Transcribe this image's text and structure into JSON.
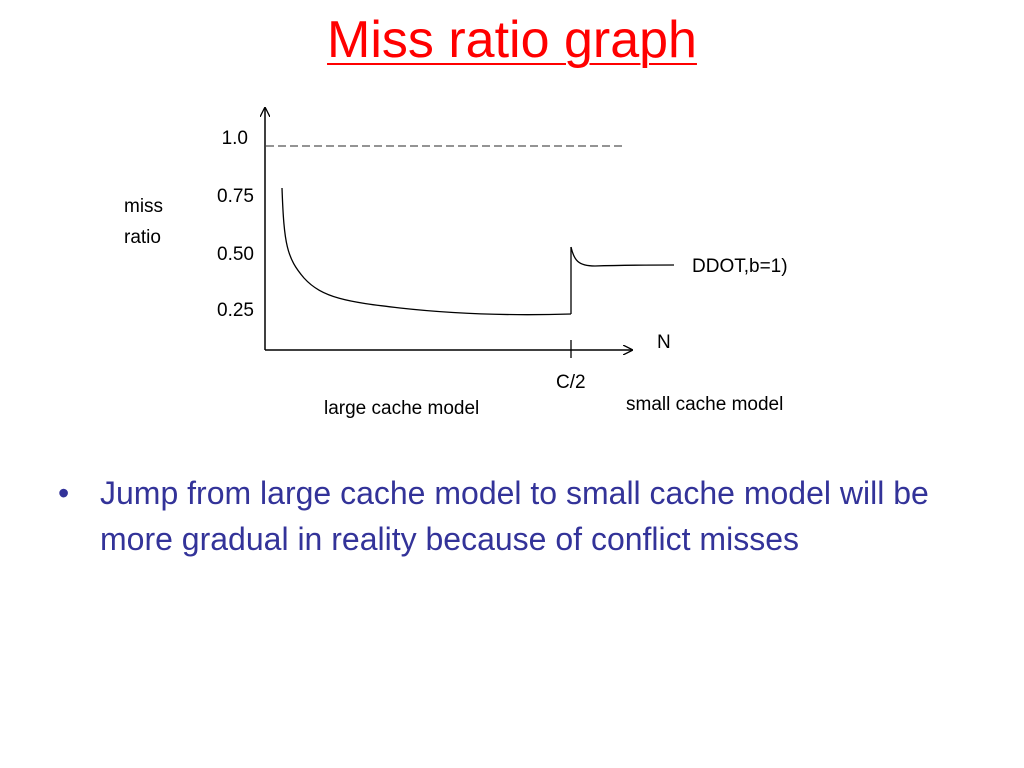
{
  "slide": {
    "title": "Miss ratio graph",
    "title_color": "#ff0000",
    "bullet_color": "#333399",
    "bullet_symbol": "•",
    "bullets": [
      "Jump from large cache model to small cache model will be more gradual in reality because of conflict misses"
    ]
  },
  "diagram": {
    "y_axis_label_line1": "miss",
    "y_axis_label_line2": "ratio",
    "x_axis_label": "N",
    "y_ticks": [
      "1.0",
      "0.75",
      "0.50",
      "0.25"
    ],
    "x_marker_label": "C/2",
    "curve_label": "DDOT,b=1)",
    "region_left_label": "large cache model",
    "region_right_label": "small cache model",
    "reference_line": "dashed line at 1.0",
    "curve_color": "#000000",
    "dash_color": "#555555"
  }
}
